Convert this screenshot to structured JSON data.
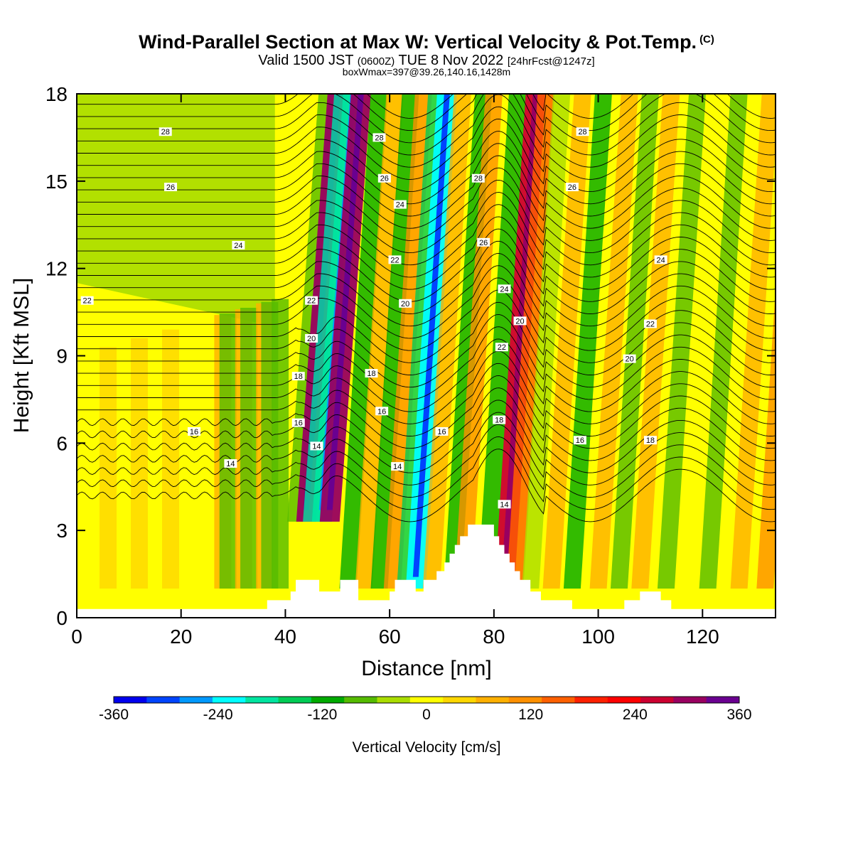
{
  "header": {
    "title": "Wind-Parallel Section at Max W: Vertical Velocity & Pot.Temp.",
    "copyright": "(C)",
    "subtitle_main": "Valid 1500 JST",
    "subtitle_utc": "(0600Z)",
    "subtitle_date": "TUE 8 Nov 2022",
    "subtitle_fcst": "[24hrFcst@1247z]",
    "box_info": "boxWmax=397@39.26,140.16,1428m"
  },
  "chart_data": {
    "type": "heatmap",
    "xlabel": "Distance [nm]",
    "ylabel": "Height [Kft MSL]",
    "xlim": [
      0,
      134
    ],
    "ylim": [
      0,
      18
    ],
    "x_ticks": [
      0,
      20,
      40,
      60,
      80,
      100,
      120
    ],
    "y_ticks": [
      0,
      3,
      6,
      9,
      12,
      15,
      18
    ],
    "colorbar": {
      "label": "Vertical Velocity [cm/s]",
      "tick_labels": [
        "-360",
        "-240",
        "-120",
        "0",
        "120",
        "240",
        "360"
      ],
      "tick_values": [
        -360,
        -240,
        -120,
        0,
        120,
        240,
        360
      ],
      "colors": [
        "#0000ee",
        "#0044ff",
        "#0099ff",
        "#00ffff",
        "#00e5a0",
        "#00cc55",
        "#00aa00",
        "#55bb00",
        "#aadd00",
        "#ffff00",
        "#ffd700",
        "#ffb000",
        "#ff9000",
        "#ff6000",
        "#ff2000",
        "#ff0000",
        "#cc0030",
        "#990060",
        "#6a0090"
      ]
    },
    "vertical_velocity_bands": [
      {
        "x": 2,
        "w": -10
      },
      {
        "x": 6,
        "w": 35
      },
      {
        "x": 12,
        "w": 45
      },
      {
        "x": 18,
        "w": 40
      },
      {
        "x": 28,
        "w": 60
      },
      {
        "x": 29,
        "w": -90
      },
      {
        "x": 32,
        "w": 60
      },
      {
        "x": 33,
        "w": -90
      },
      {
        "x": 36,
        "w": 60
      },
      {
        "x": 37,
        "w": -80
      },
      {
        "x": 39,
        "w": -70
      },
      {
        "x": 42,
        "w": -100
      },
      {
        "x": 44,
        "w": 330
      },
      {
        "x": 45,
        "w": -200
      },
      {
        "x": 47,
        "w": -220
      },
      {
        "x": 48.5,
        "w": 330
      },
      {
        "x": 52,
        "w": -130
      },
      {
        "x": 55,
        "w": 90
      },
      {
        "x": 58,
        "w": -140
      },
      {
        "x": 60.5,
        "w": 130
      },
      {
        "x": 63,
        "w": -150
      },
      {
        "x": 65,
        "w": -260
      },
      {
        "x": 68,
        "w": 90
      },
      {
        "x": 72,
        "w": -130
      },
      {
        "x": 74,
        "w": 110
      },
      {
        "x": 78.5,
        "w": -120
      },
      {
        "x": 82,
        "w": 280
      },
      {
        "x": 84,
        "w": 150
      },
      {
        "x": 87,
        "w": -40
      },
      {
        "x": 91,
        "w": 80
      },
      {
        "x": 95,
        "w": -110
      },
      {
        "x": 100,
        "w": 70
      },
      {
        "x": 104,
        "w": -90
      },
      {
        "x": 108,
        "w": 60
      },
      {
        "x": 113,
        "w": -100
      },
      {
        "x": 121,
        "w": -100
      },
      {
        "x": 127,
        "w": 60
      },
      {
        "x": 132,
        "w": 110
      }
    ],
    "contour_labels": [
      {
        "text": "28",
        "x": 17,
        "y": 16.7
      },
      {
        "text": "26",
        "x": 18,
        "y": 14.8
      },
      {
        "text": "24",
        "x": 31,
        "y": 12.8
      },
      {
        "text": "22",
        "x": 2,
        "y": 10.9
      },
      {
        "text": "22",
        "x": 45,
        "y": 10.9
      },
      {
        "text": "20",
        "x": 45,
        "y": 9.6
      },
      {
        "text": "18",
        "x": 42.5,
        "y": 8.3
      },
      {
        "text": "16",
        "x": 42.5,
        "y": 6.7
      },
      {
        "text": "14",
        "x": 46,
        "y": 5.9
      },
      {
        "text": "16",
        "x": 22.5,
        "y": 6.4
      },
      {
        "text": "14",
        "x": 29.5,
        "y": 5.3
      },
      {
        "text": "28",
        "x": 58,
        "y": 16.5
      },
      {
        "text": "26",
        "x": 59,
        "y": 15.1
      },
      {
        "text": "24",
        "x": 62,
        "y": 14.2
      },
      {
        "text": "22",
        "x": 61,
        "y": 12.3
      },
      {
        "text": "20",
        "x": 63,
        "y": 10.8
      },
      {
        "text": "18",
        "x": 56.5,
        "y": 8.4
      },
      {
        "text": "16",
        "x": 58.5,
        "y": 7.1
      },
      {
        "text": "14",
        "x": 61.5,
        "y": 5.2
      },
      {
        "text": "16",
        "x": 70,
        "y": 6.4
      },
      {
        "text": "28",
        "x": 77,
        "y": 15.1
      },
      {
        "text": "26",
        "x": 78,
        "y": 12.9
      },
      {
        "text": "24",
        "x": 82,
        "y": 11.3
      },
      {
        "text": "22",
        "x": 81.5,
        "y": 9.3
      },
      {
        "text": "20",
        "x": 85,
        "y": 10.2
      },
      {
        "text": "18",
        "x": 81,
        "y": 6.8
      },
      {
        "text": "14",
        "x": 82,
        "y": 3.9
      },
      {
        "text": "28",
        "x": 97,
        "y": 16.7
      },
      {
        "text": "26",
        "x": 95,
        "y": 14.8
      },
      {
        "text": "24",
        "x": 112,
        "y": 12.3
      },
      {
        "text": "22",
        "x": 110,
        "y": 10.1
      },
      {
        "text": "20",
        "x": 106,
        "y": 8.9
      },
      {
        "text": "18",
        "x": 110,
        "y": 6.1
      },
      {
        "text": "16",
        "x": 96.5,
        "y": 6.1
      }
    ],
    "terrain": [
      [
        0,
        0.3
      ],
      [
        5,
        0.3
      ],
      [
        5,
        0.3
      ],
      [
        36.5,
        0.3
      ],
      [
        36.5,
        0.6
      ],
      [
        40,
        0.6
      ],
      [
        40,
        0.6
      ],
      [
        41,
        0.6
      ],
      [
        41,
        0.9
      ],
      [
        42,
        0.9
      ],
      [
        42,
        1.3
      ],
      [
        46.5,
        1.3
      ],
      [
        46.5,
        0.9
      ],
      [
        50.5,
        0.9
      ],
      [
        50.5,
        1.3
      ],
      [
        54,
        1.3
      ],
      [
        54,
        0.6
      ],
      [
        60,
        0.6
      ],
      [
        60,
        0.9
      ],
      [
        61,
        0.9
      ],
      [
        61,
        1.3
      ],
      [
        65,
        1.3
      ],
      [
        65,
        0.9
      ],
      [
        66.5,
        0.9
      ],
      [
        66.5,
        1.3
      ],
      [
        69,
        1.3
      ],
      [
        69,
        1.6
      ],
      [
        70.5,
        1.6
      ],
      [
        70.5,
        1.9
      ],
      [
        71.5,
        1.9
      ],
      [
        71.5,
        2.2
      ],
      [
        72.5,
        2.2
      ],
      [
        72.5,
        2.5
      ],
      [
        73.5,
        2.5
      ],
      [
        73.5,
        2.8
      ],
      [
        75,
        2.8
      ],
      [
        75,
        3.2
      ],
      [
        80,
        3.2
      ],
      [
        80,
        2.8
      ],
      [
        81,
        2.8
      ],
      [
        81,
        2.5
      ],
      [
        82,
        2.5
      ],
      [
        82,
        2.2
      ],
      [
        83,
        2.2
      ],
      [
        83,
        1.9
      ],
      [
        84,
        1.9
      ],
      [
        84,
        1.6
      ],
      [
        85,
        1.6
      ],
      [
        85,
        1.3
      ],
      [
        87,
        1.3
      ],
      [
        87,
        0.9
      ],
      [
        89,
        0.9
      ],
      [
        89,
        0.6
      ],
      [
        95,
        0.6
      ],
      [
        95,
        0.3
      ],
      [
        105,
        0.3
      ],
      [
        105,
        0.6
      ],
      [
        108,
        0.6
      ],
      [
        108,
        0.9
      ],
      [
        112,
        0.9
      ],
      [
        112,
        0.6
      ],
      [
        114,
        0.6
      ],
      [
        114,
        0.3
      ],
      [
        134,
        0.3
      ]
    ]
  }
}
